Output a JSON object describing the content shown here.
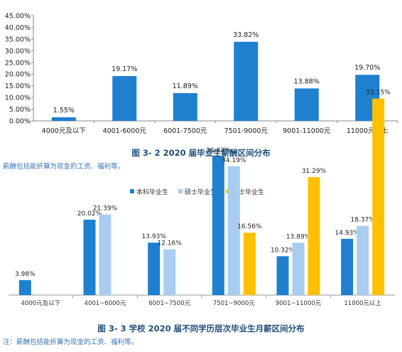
{
  "charts": [
    {
      "caption": "图 3- 2    2020 届毕业生薪酬区间分布",
      "note": "薪酬包括能折算为现金的工资、福利等。"
    },
    {
      "caption": "图 3- 3    学校 2020 届不同学历层次毕业生月薪区间分布",
      "note": "注：薪酬包括能折算为现金的工资、福利等。"
    }
  ],
  "chart_data": [
    {
      "type": "bar",
      "categories": [
        "4000元及以下",
        "4001-6000元",
        "6001-7500元",
        "7501-9000元",
        "9001-11000元",
        "11000元以上"
      ],
      "values": [
        1.55,
        19.17,
        11.89,
        33.82,
        13.88,
        19.7
      ],
      "value_labels": [
        "1.55%",
        "19.17%",
        "11.89%",
        "33.82%",
        "13.88%",
        "19.70%"
      ],
      "y_ticks": [
        "0.00%",
        "5.00%",
        "10.00%",
        "15.00%",
        "20.00%",
        "25.00%",
        "30.00%",
        "35.00%",
        "40.00%",
        "45.00%"
      ],
      "ylim": [
        0,
        45
      ],
      "color": "#1f80d0",
      "grid": false
    },
    {
      "type": "bar",
      "categories": [
        "4000元及以下",
        "4001~6000元",
        "6001~7500元",
        "7501~9000元",
        "9001~11000元",
        "11000元以上"
      ],
      "series": [
        {
          "name": "本科毕业生",
          "color": "#1f80d0",
          "values": [
            3.98,
            20.02,
            13.93,
            36.82,
            10.32,
            14.93
          ],
          "labels": [
            "3.98%",
            "20.02%",
            "13.93%",
            "36.82%",
            "10.32%",
            "14.93%"
          ]
        },
        {
          "name": "硕士毕业生",
          "color": "#a8cdf0",
          "values": [
            null,
            21.39,
            12.16,
            34.19,
            13.89,
            18.37
          ],
          "labels": [
            "",
            "21.39%",
            "12.16%",
            "34.19%",
            "13.89%",
            "18.37%"
          ]
        },
        {
          "name": "博士毕业生",
          "color": "#ffc000",
          "values": [
            null,
            null,
            null,
            16.56,
            31.29,
            52.15
          ],
          "labels": [
            "",
            "",
            "",
            "16.56%",
            "31.29%",
            "52.15%"
          ]
        }
      ],
      "legend": "top",
      "y_axis": false,
      "grid": false
    }
  ]
}
